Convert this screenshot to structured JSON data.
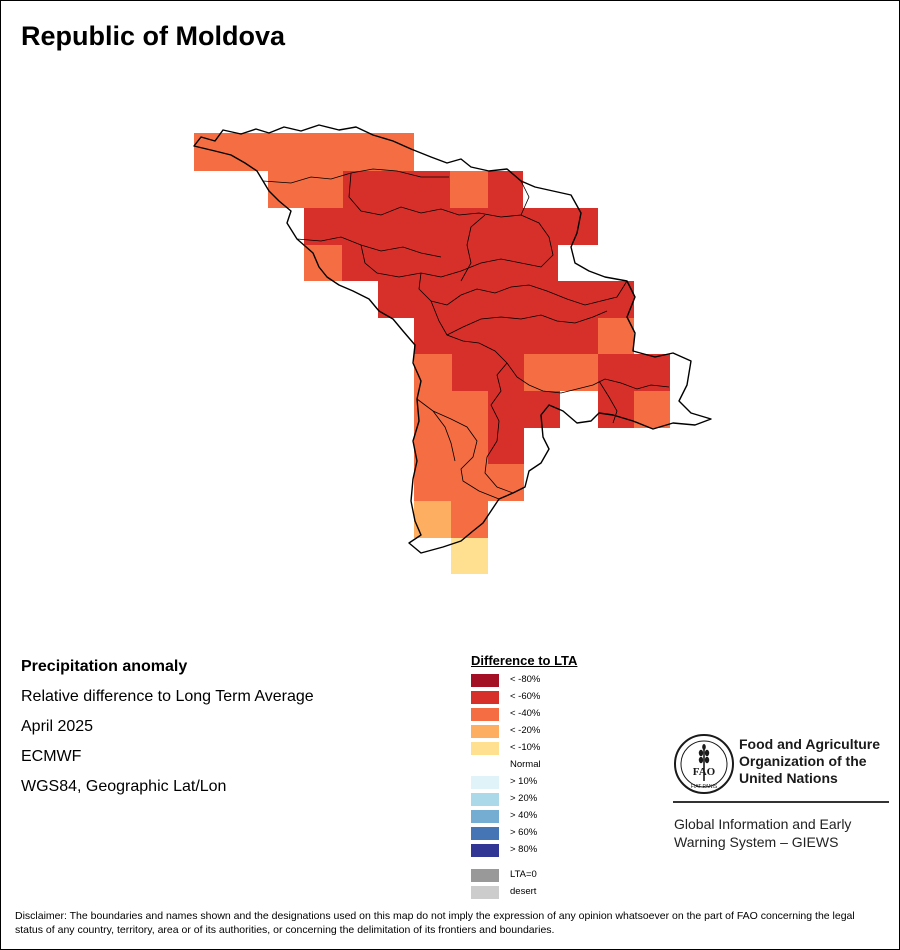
{
  "map": {
    "title": "Republic of Moldova"
  },
  "info": {
    "lines": [
      "Precipitation anomaly",
      "Relative difference to Long Term Average",
      "April 2025",
      "ECMWF",
      "WGS84, Geographic Lat/Lon"
    ]
  },
  "legend": {
    "title": "Difference to LTA",
    "items": [
      {
        "label": "< -80%",
        "color": "#a50f26"
      },
      {
        "label": "< -60%",
        "color": "#d7302a"
      },
      {
        "label": "< -40%",
        "color": "#f46d43"
      },
      {
        "label": "< -20%",
        "color": "#fdae61"
      },
      {
        "label": "< -10%",
        "color": "#fee090"
      },
      {
        "label": "Normal",
        "color": "#ffffff"
      },
      {
        "label": "> 10%",
        "color": "#e0f3f8"
      },
      {
        "label": "> 20%",
        "color": "#abd9e9"
      },
      {
        "label": "> 40%",
        "color": "#74add1"
      },
      {
        "label": "> 60%",
        "color": "#4575b4"
      },
      {
        "label": "> 80%",
        "color": "#313695"
      }
    ],
    "extra": [
      {
        "label": "LTA=0",
        "color": "#999999"
      },
      {
        "label": "desert",
        "color": "#cccccc"
      }
    ]
  },
  "logo": {
    "org_name": "Food and Agriculture Organization of the United Nations",
    "emblem_letters": "FAO",
    "emblem_motto": "FIAT PANIS",
    "program": "Global Information and Early Warning System – GIEWS"
  },
  "disclaimer": "Disclaimer: The boundaries and names shown and the designations used on this map do not imply the expression of any opinion whatsoever on the part of FAO concerning the legal status of any country, territory, area or of its authorities, or concerning the delimitation of its frontiers and boundaries."
}
